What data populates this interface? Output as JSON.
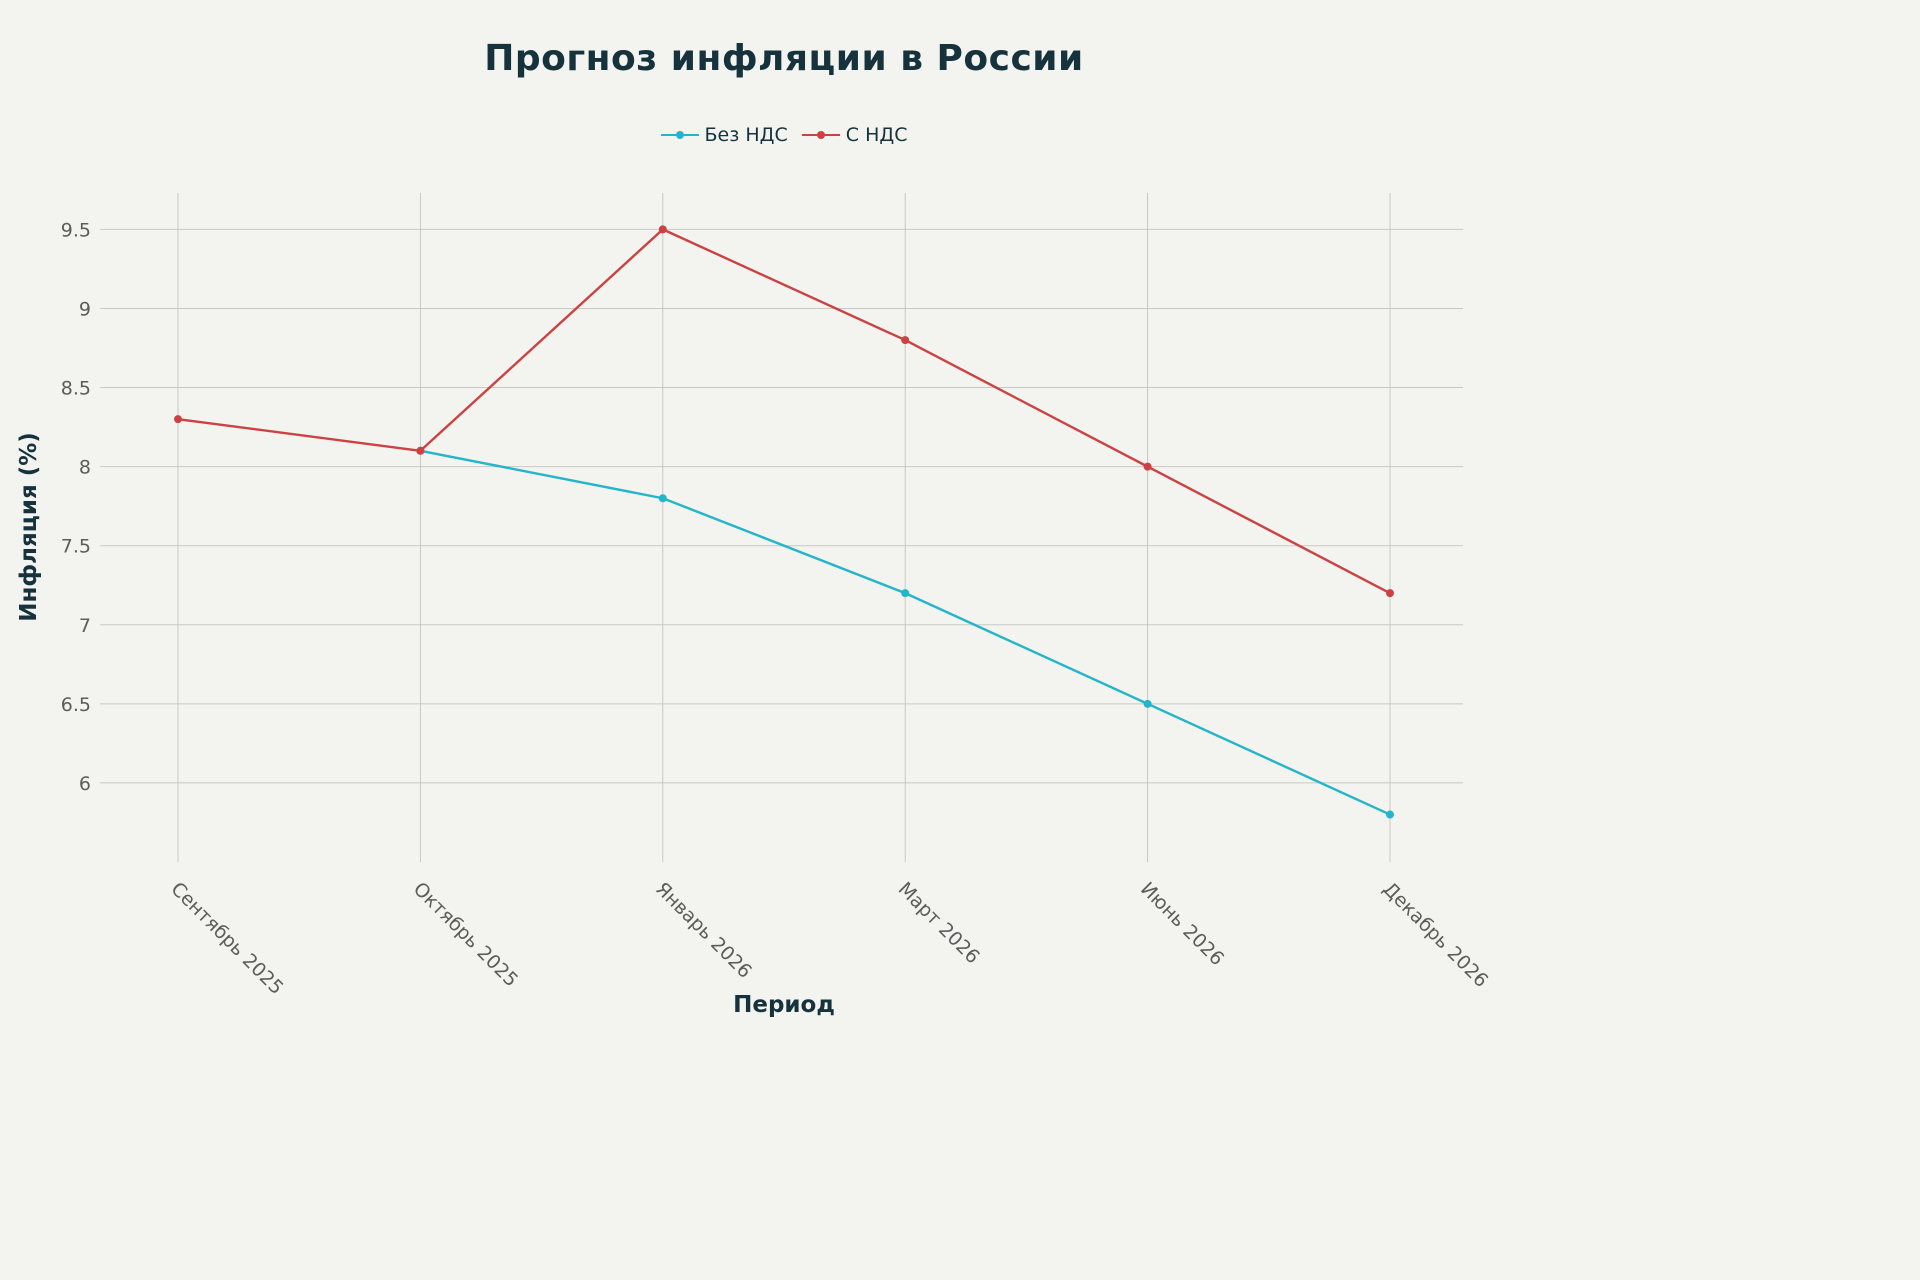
{
  "chart_data": {
    "type": "line",
    "title": "Прогноз инфляции в России",
    "xlabel": "Период",
    "ylabel": "Инфляция (%)",
    "categories": [
      "Сентябрь 2025",
      "Октябрь 2025",
      "Январь 2026",
      "Март 2026",
      "Июнь 2026",
      "Декабрь 2026"
    ],
    "series": [
      {
        "name": "Без НДС",
        "color": "#23b5c9",
        "values": [
          null,
          8.1,
          7.8,
          7.2,
          6.5,
          5.8
        ]
      },
      {
        "name": "С НДС",
        "color": "#cc4242",
        "values": [
          8.3,
          8.1,
          9.5,
          8.8,
          8.0,
          7.2
        ]
      }
    ],
    "yticks": [
      6,
      6.5,
      7,
      7.5,
      8,
      8.5,
      9,
      9.5
    ],
    "ytick_labels": [
      "6",
      "6.5",
      "7",
      "7.5",
      "8",
      "8.5",
      "9",
      "9.5"
    ],
    "ylim": [
      5.5,
      9.73
    ],
    "grid": true,
    "legend_position": "top-center"
  }
}
